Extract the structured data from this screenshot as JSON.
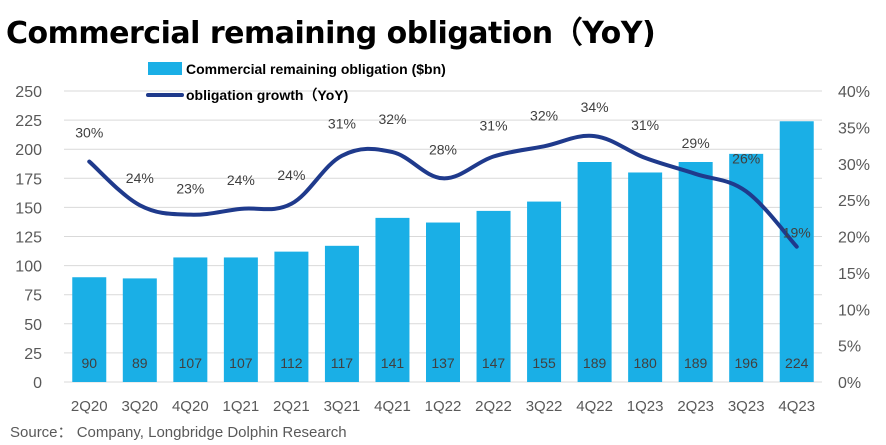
{
  "title": "Commercial remaining obligation（YoY)",
  "source": "Source： Company, Longbridge Dolphin Research",
  "colors": {
    "bar": "#1aafe6",
    "line": "#1f3a8c",
    "grid": "#d9d9d9",
    "text": "#595959"
  },
  "chart_data": {
    "type": "bar+line",
    "categories": [
      "2Q20",
      "3Q20",
      "4Q20",
      "1Q21",
      "2Q21",
      "3Q21",
      "4Q21",
      "1Q22",
      "2Q22",
      "3Q22",
      "4Q22",
      "1Q23",
      "2Q23",
      "3Q23",
      "4Q23"
    ],
    "series": [
      {
        "name": "Commercial remaining obligation ($bn)",
        "type": "bar",
        "axis": "left",
        "values": [
          90,
          89,
          107,
          107,
          112,
          117,
          141,
          137,
          147,
          155,
          189,
          180,
          189,
          196,
          224
        ]
      },
      {
        "name": "obligation growth（YoY)",
        "type": "line",
        "axis": "right",
        "values": [
          30,
          24,
          23,
          24,
          24,
          31,
          32,
          28,
          31,
          32,
          34,
          31,
          29,
          26,
          19
        ]
      }
    ],
    "pct_labels": [
      "30%",
      "24%",
      "23%",
      "24%",
      "24%",
      "31%",
      "32%",
      "28%",
      "31%",
      "32%",
      "34%",
      "31%",
      "29%",
      "26%",
      "19%"
    ],
    "line_values_actual": [
      30.3,
      24.3,
      23.0,
      23.8,
      24.5,
      31.1,
      31.6,
      28.0,
      31.0,
      32.4,
      33.8,
      30.8,
      28.6,
      26.2,
      18.6
    ],
    "left_axis": {
      "ylim": [
        0,
        250
      ],
      "ticks": [
        "0",
        "25",
        "50",
        "75",
        "100",
        "125",
        "150",
        "175",
        "200",
        "225",
        "250"
      ]
    },
    "right_axis": {
      "ylim": [
        0,
        40
      ],
      "ticks": [
        "0%",
        "5%",
        "10%",
        "15%",
        "20%",
        "25%",
        "30%",
        "35%",
        "40%"
      ]
    },
    "legend": {
      "position": "top-center",
      "items": [
        "Commercial remaining obligation ($bn)",
        "obligation growth（YoY)"
      ]
    },
    "grid": true
  }
}
